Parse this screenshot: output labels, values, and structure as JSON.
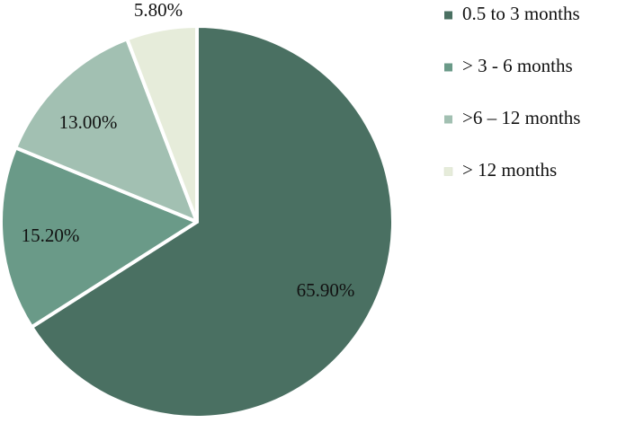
{
  "chart_data": {
    "type": "pie",
    "categories": [
      "0.5 to 3 months",
      "> 3 - 6 months",
      ">6 – 12 months",
      "> 12 months"
    ],
    "values": [
      65.9,
      15.2,
      13.0,
      5.8
    ],
    "labels": [
      "65.90%",
      "15.20%",
      "13.00%",
      "5.80%"
    ],
    "colors": [
      "#4A7062",
      "#6A9A88",
      "#A2C0B2",
      "#E6ECDA"
    ],
    "legend_position": "right",
    "start_angle": "12 o'clock",
    "direction": "clockwise"
  }
}
